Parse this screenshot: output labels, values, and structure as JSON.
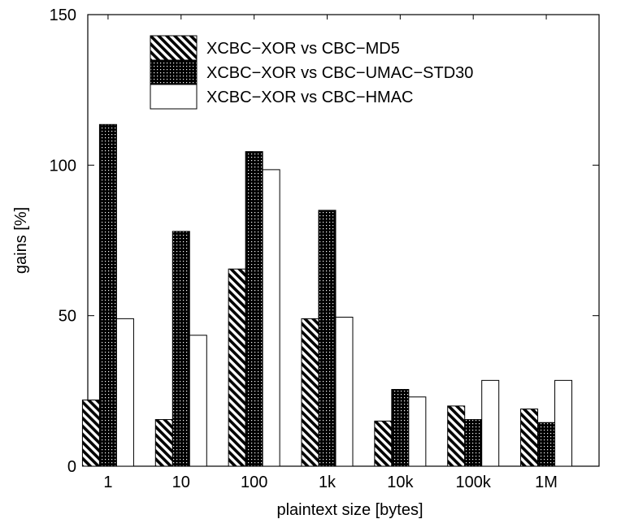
{
  "chart_data": {
    "type": "bar",
    "title": "",
    "xlabel": "plaintext size [bytes]",
    "ylabel": "gains  [%]",
    "ylim": [
      0,
      150
    ],
    "yticks": [
      0,
      50,
      100,
      150
    ],
    "categories": [
      "1",
      "10",
      "100",
      "1k",
      "10k",
      "100k",
      "1M"
    ],
    "series": [
      {
        "name": "XCBC−XOR vs CBC−MD5",
        "pattern": "diagonal-stripes",
        "values": [
          22,
          15.5,
          65.5,
          49,
          15,
          20,
          19
        ]
      },
      {
        "name": "XCBC−XOR vs CBC−UMAC−STD30",
        "pattern": "dense-dots",
        "values": [
          113.5,
          78,
          104.5,
          85,
          25.5,
          15.5,
          14.5
        ]
      },
      {
        "name": "XCBC−XOR vs CBC−HMAC",
        "pattern": "white",
        "values": [
          49,
          43.5,
          98.5,
          49.5,
          23,
          28.5,
          28.5
        ]
      }
    ],
    "legend_position": "top-left-inside",
    "grid": false
  }
}
